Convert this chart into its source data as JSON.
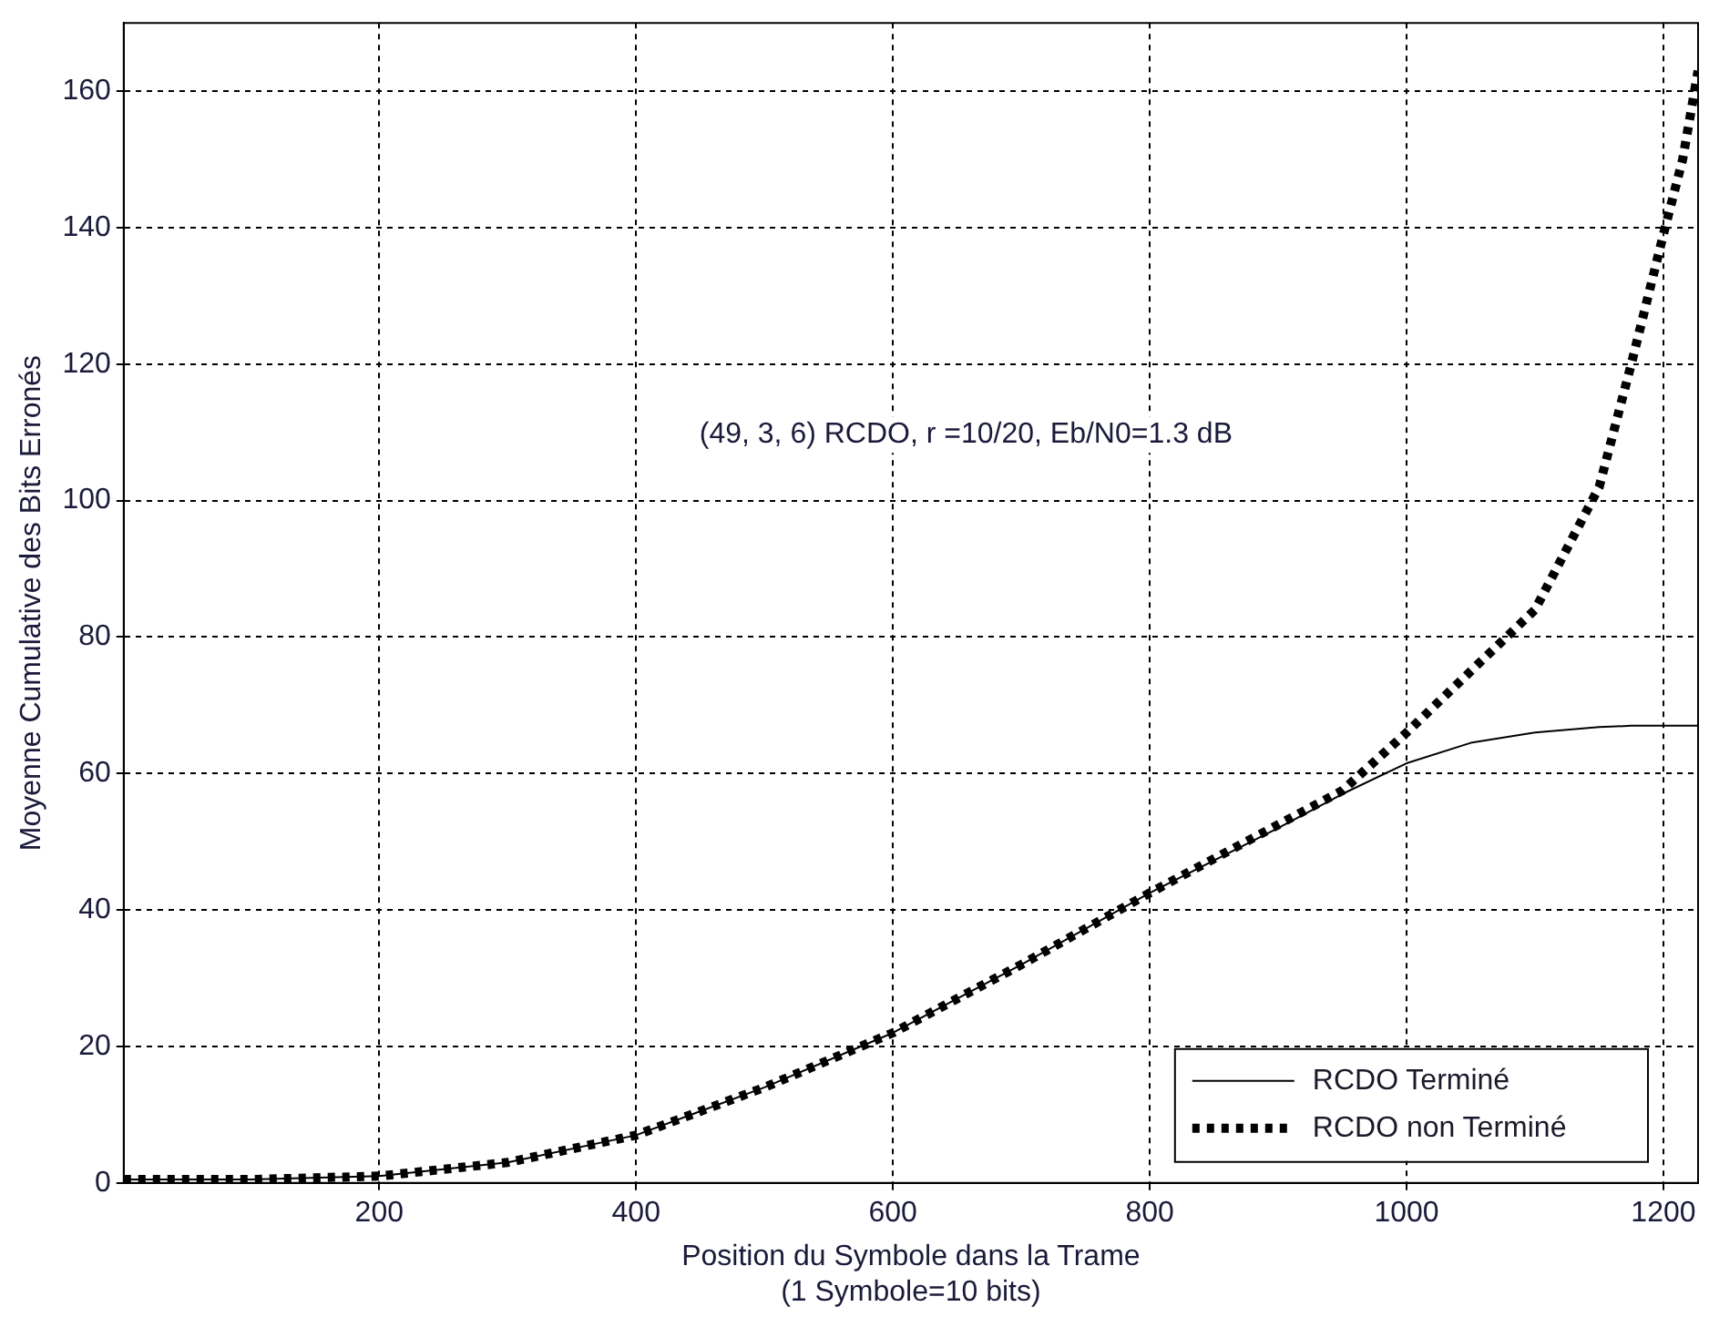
{
  "chart_data": {
    "type": "line",
    "xlabel": "Position du Symbole dans la Trame\n(1 Symbole=10 bits)",
    "ylabel": "Moyenne Cumulative des Bits Erronés",
    "annotations": [
      "(49, 3, 6) RCDO, r =10/20, Eb/N0=1.3 dB"
    ],
    "xlim": [
      1,
      1227
    ],
    "ylim": [
      0,
      170
    ],
    "xticks": [
      200,
      400,
      600,
      800,
      1000,
      1200
    ],
    "yticks": [
      0,
      20,
      40,
      60,
      80,
      100,
      120,
      140,
      160
    ],
    "grid": true,
    "legend": "bottom right",
    "marker": "none",
    "x": [
      1,
      100,
      200,
      300,
      400,
      500,
      600,
      700,
      800,
      900,
      950,
      1000,
      1050,
      1100,
      1150,
      1175,
      1200,
      1215,
      1227
    ],
    "series": [
      {
        "name": "RCDO Terminé",
        "color": "#000000",
        "line_style": "solid",
        "values": [
          0.5,
          0.5,
          1,
          3,
          7,
          14,
          22,
          32,
          42.5,
          52,
          57,
          61.5,
          64.5,
          66,
          66.8,
          67,
          67,
          67,
          67
        ]
      },
      {
        "name": "RCDO non Terminé",
        "color": "#000000",
        "line_style": "dotted",
        "values": [
          0.5,
          0.5,
          1,
          3,
          7,
          14,
          22,
          32,
          42.5,
          52.5,
          57.5,
          66,
          75,
          84,
          102,
          120,
          139,
          150,
          163
        ]
      }
    ]
  }
}
